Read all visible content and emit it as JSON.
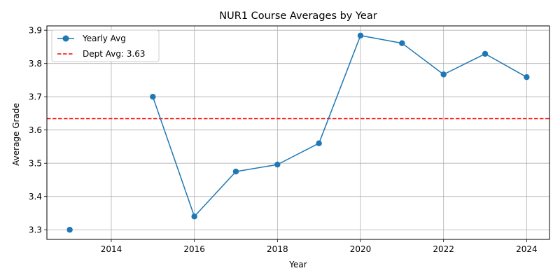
{
  "chart_data": {
    "type": "line",
    "title": "NUR1 Course Averages by Year",
    "xlabel": "Year",
    "ylabel": "Average Grade",
    "xlim": [
      2012.45,
      2024.55
    ],
    "ylim": [
      3.271,
      3.913
    ],
    "xticks": [
      2014,
      2016,
      2018,
      2020,
      2022,
      2024
    ],
    "yticks": [
      3.3,
      3.4,
      3.5,
      3.6,
      3.7,
      3.8,
      3.9
    ],
    "grid": true,
    "legend_position": "top-left",
    "series": [
      {
        "name": "Yearly Avg",
        "color": "#1f77b4",
        "marker": "circle",
        "segments": [
          [
            {
              "x": 2013,
              "y": 3.3
            }
          ],
          [
            {
              "x": 2015,
              "y": 3.7
            },
            {
              "x": 2016,
              "y": 3.34
            },
            {
              "x": 2017,
              "y": 3.475
            },
            {
              "x": 2018,
              "y": 3.496
            },
            {
              "x": 2019,
              "y": 3.56
            },
            {
              "x": 2020,
              "y": 3.884
            },
            {
              "x": 2021,
              "y": 3.861
            },
            {
              "x": 2022,
              "y": 3.767
            },
            {
              "x": 2023,
              "y": 3.829
            },
            {
              "x": 2024,
              "y": 3.759
            }
          ]
        ]
      }
    ],
    "reference_line": {
      "name": "Dept Avg: 3.63",
      "value": 3.634,
      "color": "#ff0000",
      "style": "dashed"
    }
  }
}
